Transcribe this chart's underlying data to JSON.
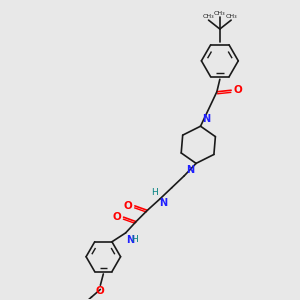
{
  "bg_color": "#e8e8e8",
  "bond_color": "#1a1a1a",
  "nitrogen_color": "#2020ff",
  "oxygen_color": "#ff0000",
  "hn_color": "#008080",
  "lw": 1.2,
  "lw_double": 0.9,
  "figsize": [
    3.0,
    3.0
  ],
  "dpi": 100,
  "xlim": [
    0,
    10
  ],
  "ylim": [
    0,
    10
  ]
}
